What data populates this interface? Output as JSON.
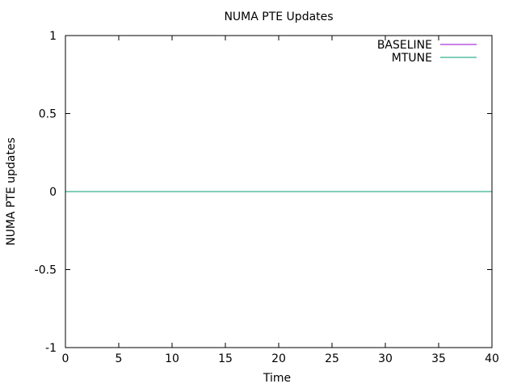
{
  "chart_data": {
    "type": "line",
    "title": "NUMA PTE Updates",
    "xlabel": "Time",
    "ylabel": "NUMA PTE updates",
    "xlim": [
      0,
      40
    ],
    "ylim": [
      -1,
      1
    ],
    "xticks": [
      0,
      5,
      10,
      15,
      20,
      25,
      30,
      35,
      40
    ],
    "yticks": [
      -1,
      -0.5,
      0,
      0.5,
      1
    ],
    "xtick_labels": [
      "0",
      "5",
      "10",
      "15",
      "20",
      "25",
      "30",
      "35",
      "40"
    ],
    "ytick_labels": [
      "-1",
      "-0.5",
      "0",
      "0.5",
      "1"
    ],
    "grid": false,
    "legend_placement": "top-right",
    "series": [
      {
        "name": "BASELINE",
        "color": "#9400d3",
        "x": [
          0,
          40
        ],
        "y": [
          0,
          0
        ]
      },
      {
        "name": "MTUNE",
        "color": "#009e73",
        "x": [
          0,
          40
        ],
        "y": [
          0,
          0
        ]
      }
    ]
  }
}
